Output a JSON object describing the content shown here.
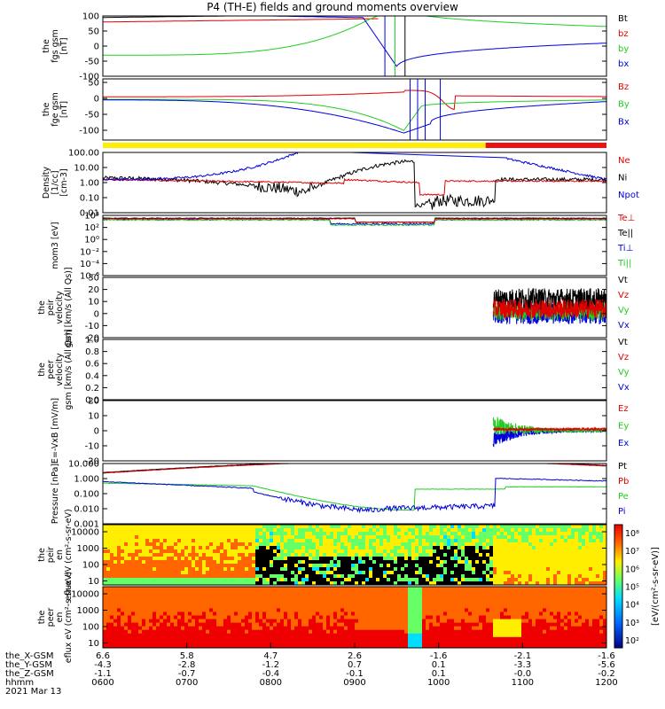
{
  "title": "P4 (TH-E) fields and ground moments overview",
  "colors": {
    "black": "#000000",
    "red": "#e00000",
    "green": "#22cc22",
    "blue": "#0000dd",
    "yellow": "#ffee00",
    "redbar": "#ee1111"
  },
  "chart_data": [
    {
      "type": "line",
      "name": "fgs",
      "ylabel": "the fgs gsm [nT]",
      "ylim": [
        -100,
        100
      ],
      "yticks": [
        "100",
        "50",
        "0",
        "-50",
        "-100"
      ],
      "legend": [
        "Bt",
        "bz",
        "by",
        "bx"
      ]
    },
    {
      "type": "line",
      "name": "fge",
      "ylabel": "the fge gsm [nT]",
      "ylim": [
        -120,
        60
      ],
      "yticks": [
        "50",
        "0",
        "-50",
        "-100"
      ],
      "legend": [
        "Bz",
        "By",
        "Bx"
      ]
    },
    {
      "type": "line",
      "name": "density",
      "ylabel": "Density [1/cc] [cm-3]",
      "scale": "log",
      "yticks": [
        "100.00",
        "10.00",
        "1.00",
        "0.10",
        "0.01"
      ],
      "legend": [
        "Ne",
        "Ni",
        "Npot"
      ]
    },
    {
      "type": "line",
      "name": "temperature",
      "ylabel": "mom3 [eV]",
      "scale": "log",
      "yticks": [
        "10⁴",
        "10²",
        "10⁰",
        "10⁻²",
        "10⁻⁴",
        "10⁻⁶"
      ],
      "legend": [
        "Te⊥",
        "Te||",
        "Ti⊥",
        "Ti||"
      ]
    },
    {
      "type": "line",
      "name": "peir_velocity",
      "ylabel": "the peir velocity gsm [km/s (All Qs)]",
      "ylim": [
        -20,
        30
      ],
      "yticks": [
        "30",
        "20",
        "10",
        "0",
        "-10",
        "-20"
      ],
      "legend": [
        "Vt",
        "Vz",
        "Vy",
        "Vx"
      ]
    },
    {
      "type": "line",
      "name": "peer_velocity",
      "ylabel": "the peer velocity gsm [km/s (All Qs)]",
      "ylim": [
        0,
        1
      ],
      "yticks": [
        "1.0",
        "0.8",
        "0.6",
        "0.4",
        "0.2",
        "0.0"
      ],
      "legend": [
        "Vt",
        "Vz",
        "Vy",
        "Vx"
      ]
    },
    {
      "type": "line",
      "name": "efield",
      "ylabel": "E=-VxB [mV/m]",
      "ylim": [
        -20,
        20
      ],
      "yticks": [
        "20",
        "10",
        "0",
        "-10",
        "-20"
      ],
      "legend": [
        "Ez",
        "Ey",
        "Ex"
      ]
    },
    {
      "type": "line",
      "name": "pressure",
      "ylabel": "Pressure [nPa]",
      "scale": "log",
      "yticks": [
        "10.000",
        "1.000",
        "0.100",
        "0.010",
        "0.001"
      ],
      "legend": [
        "Pt",
        "Pb",
        "Pe",
        "Pi"
      ]
    },
    {
      "type": "heatmap",
      "name": "peir_en",
      "ylabel": "the peir en eflux eV (cm²-s-sr-eV)",
      "yticks": [
        "10000",
        "1000",
        "100",
        "10"
      ]
    },
    {
      "type": "heatmap",
      "name": "peer_en",
      "ylabel": "the peer en eflux eV (cm²-s-sr-eV)",
      "yticks": [
        "10000",
        "1000",
        "100",
        "10"
      ]
    }
  ],
  "colorbar": {
    "ticks": [
      "10⁸",
      "10⁷",
      "10⁶",
      "10⁵",
      "10⁴",
      "10³",
      "10²"
    ],
    "label": "[eV/(cm²-s-sr-eV)]"
  },
  "xaxis": {
    "rows": [
      {
        "label": "the_X-GSM",
        "values": [
          "6.6",
          "5.8",
          "4.7",
          "2.6",
          "-1.6",
          "-2.1",
          "-1.6"
        ]
      },
      {
        "label": "the_Y-GSM",
        "values": [
          "-4.3",
          "-2.8",
          "-1.2",
          "0.7",
          "0.1",
          "-3.3",
          "-5.6"
        ]
      },
      {
        "label": "the_Z-GSM",
        "values": [
          "-1.1",
          "-0.7",
          "-0.4",
          "-0.1",
          "0.1",
          "-0.0",
          "-0.2"
        ]
      },
      {
        "label": "hhmm",
        "values": [
          "0600",
          "0700",
          "0800",
          "0900",
          "1000",
          "1100",
          "1200"
        ]
      }
    ],
    "date": "2021 Mar 13"
  }
}
